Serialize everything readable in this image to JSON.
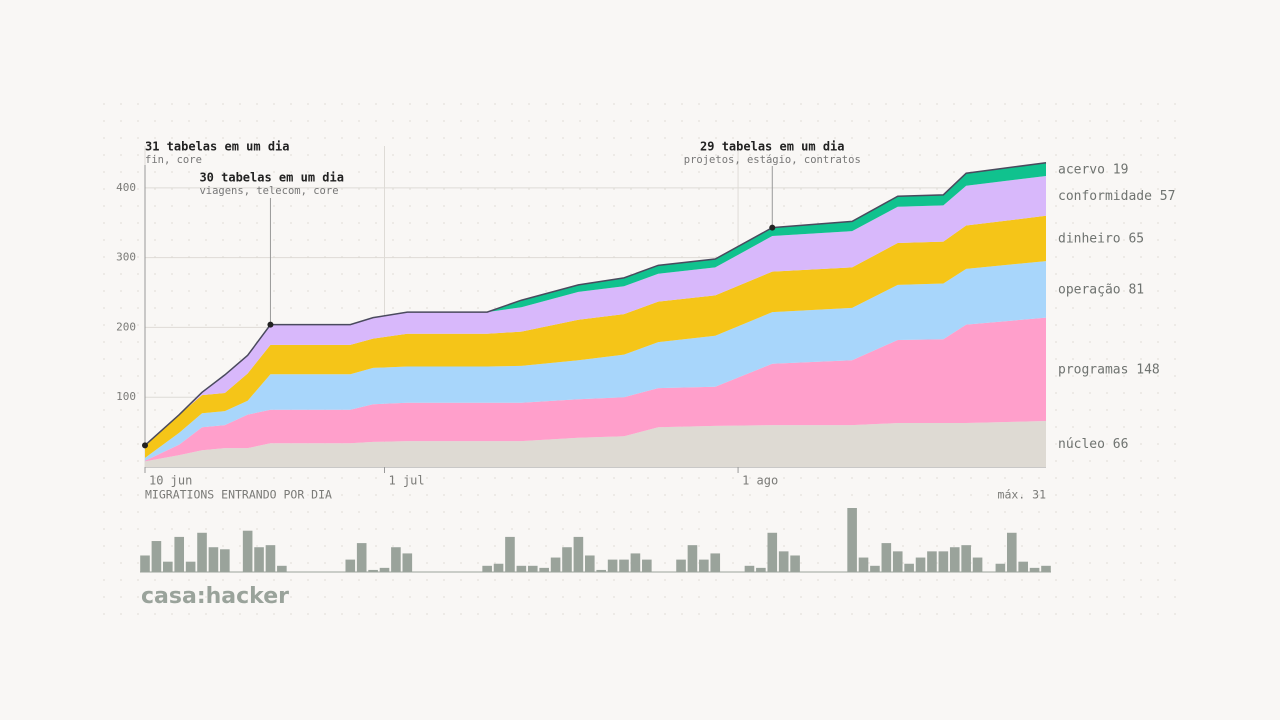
{
  "chart_data": [
    {
      "type": "area",
      "stacked": true,
      "x": [
        "06-10",
        "06-13",
        "06-15",
        "06-17",
        "06-19",
        "06-21",
        "06-28",
        "06-30",
        "07-03",
        "07-10",
        "07-13",
        "07-18",
        "07-22",
        "07-25",
        "07-30",
        "08-04",
        "08-11",
        "08-15",
        "08-19",
        "08-21",
        "08-28"
      ],
      "xlim": [
        "06-10",
        "08-28"
      ],
      "xticks": [
        {
          "value": "06-10",
          "label": "10 jun"
        },
        {
          "value": "07-01",
          "label": "1 jul"
        },
        {
          "value": "08-01",
          "label": "1 ago"
        }
      ],
      "ylim": [
        0,
        460
      ],
      "yticks": [
        100,
        200,
        300,
        400
      ],
      "grid": true,
      "series": [
        {
          "name": "núcleo",
          "color": "#dedad3",
          "values": [
            8,
            17,
            24,
            27,
            27,
            34,
            34,
            36,
            37,
            37,
            37,
            42,
            44,
            57,
            59,
            60,
            60,
            63,
            63,
            63,
            66
          ]
        },
        {
          "name": "programas",
          "color": "#ff9fcb",
          "values": [
            1,
            15,
            33,
            33,
            48,
            48,
            48,
            54,
            55,
            55,
            55,
            55,
            56,
            56,
            56,
            88,
            93,
            119,
            120,
            141,
            148
          ]
        },
        {
          "name": "operação",
          "color": "#a8d6fb",
          "values": [
            4,
            17,
            20,
            20,
            20,
            51,
            51,
            52,
            52,
            52,
            53,
            56,
            61,
            66,
            73,
            74,
            75,
            79,
            80,
            80,
            81
          ]
        },
        {
          "name": "dinheiro",
          "color": "#f5c518",
          "values": [
            18,
            26,
            26,
            26,
            39,
            42,
            42,
            42,
            47,
            47,
            49,
            58,
            58,
            58,
            58,
            58,
            58,
            60,
            60,
            62,
            65
          ]
        },
        {
          "name": "conformidade",
          "color": "#d8b8fb",
          "values": [
            0,
            0,
            4,
            26,
            26,
            29,
            29,
            30,
            31,
            31,
            35,
            40,
            40,
            40,
            40,
            51,
            52,
            52,
            52,
            57,
            57
          ]
        },
        {
          "name": "acervo",
          "color": "#10c28e",
          "values": [
            0,
            0,
            0,
            0,
            0,
            0,
            0,
            0,
            0,
            0,
            10,
            10,
            12,
            12,
            12,
            12,
            14,
            15,
            15,
            18,
            19
          ]
        }
      ],
      "annotations": [
        {
          "title": "31 tabelas em um dia",
          "detail": "fin, core",
          "x": "06-10"
        },
        {
          "title": "30 tabelas em um dia",
          "detail": "viagens, telecom, core",
          "x": "06-21"
        },
        {
          "title": "29 tabelas em um dia",
          "detail": "projetos, estágio, contratos",
          "x": "08-04"
        }
      ]
    },
    {
      "type": "bar",
      "title": "MIGRATIONS ENTRANDO POR DIA",
      "max_label": "máx. 31",
      "color": "#9aa39b",
      "ylim": [
        0,
        31
      ],
      "x": [
        "06-10",
        "06-11",
        "06-12",
        "06-13",
        "06-14",
        "06-15",
        "06-16",
        "06-17",
        "06-19",
        "06-20",
        "06-21",
        "06-22",
        "06-28",
        "06-29",
        "06-30",
        "07-01",
        "07-02",
        "07-03",
        "07-10",
        "07-11",
        "07-12",
        "07-13",
        "07-14",
        "07-15",
        "07-16",
        "07-17",
        "07-18",
        "07-19",
        "07-20",
        "07-21",
        "07-22",
        "07-23",
        "07-24",
        "07-27",
        "07-28",
        "07-29",
        "07-30",
        "08-02",
        "08-03",
        "08-04",
        "08-05",
        "08-06",
        "08-11",
        "08-12",
        "08-13",
        "08-14",
        "08-15",
        "08-16",
        "08-17",
        "08-18",
        "08-19",
        "08-20",
        "08-21",
        "08-22",
        "08-24",
        "08-25",
        "08-26",
        "08-27",
        "08-28"
      ],
      "values": [
        8,
        15,
        5,
        17,
        5,
        19,
        12,
        11,
        20,
        12,
        13,
        3,
        6,
        14,
        1,
        2,
        12,
        9,
        3,
        4,
        17,
        3,
        3,
        2,
        7,
        12,
        17,
        8,
        1,
        6,
        6,
        9,
        6,
        6,
        13,
        6,
        9,
        3,
        2,
        19,
        10,
        8,
        31,
        7,
        3,
        14,
        10,
        4,
        7,
        10,
        10,
        12,
        13,
        7,
        4,
        19,
        5,
        2,
        3
      ]
    },
    {
      "logo": "casa:hacker"
    }
  ]
}
